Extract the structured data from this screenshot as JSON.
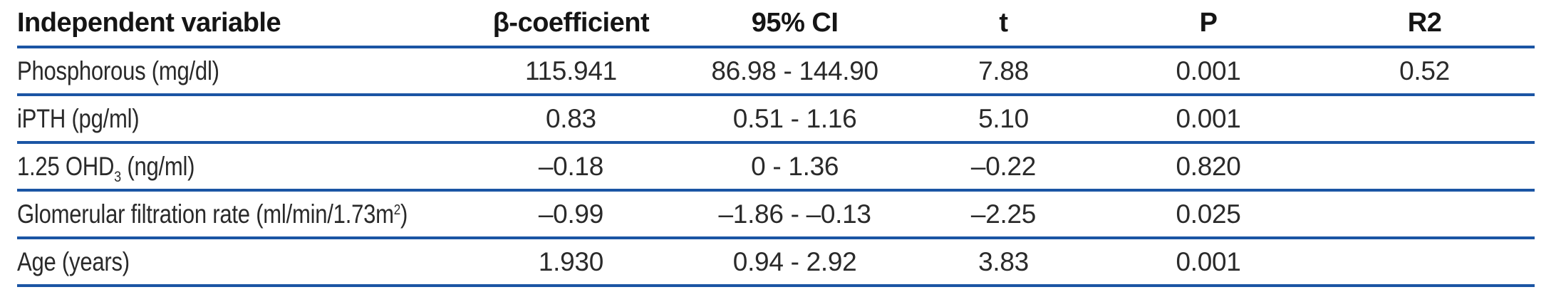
{
  "colors": {
    "line": "#1b55a4",
    "text": "#2a2a2a",
    "header_text": "#151515",
    "background": "#ffffff"
  },
  "table": {
    "headers": [
      "Independent variable",
      "β-coefficient",
      "95% CI",
      "t",
      "P",
      "R2"
    ],
    "rows": [
      [
        "Phosphorous (mg/dl)",
        "115.941",
        "86.98 - 144.90",
        "7.88",
        "0.001",
        "0.52"
      ],
      [
        "iPTH (pg/ml)",
        "0.83",
        "0.51 - 1.16",
        "5.10",
        "0.001",
        ""
      ],
      [
        [
          {
            "t": "1.25 OHD"
          },
          {
            "t": "3",
            "s": "sub"
          },
          {
            "t": " (ng/ml)"
          }
        ],
        "–0.18",
        "0 - 1.36",
        "–0.22",
        "0.820",
        ""
      ],
      [
        [
          {
            "t": "Glomerular filtration rate (ml/min/1.73m"
          },
          {
            "t": "2",
            "s": "sup"
          },
          {
            "t": ")"
          }
        ],
        "–0.99",
        "–1.86 - –0.13",
        "–2.25",
        "0.025",
        ""
      ],
      [
        "Age (years)",
        "1.930",
        "0.94 - 2.92",
        "3.83",
        "0.001",
        ""
      ]
    ]
  }
}
